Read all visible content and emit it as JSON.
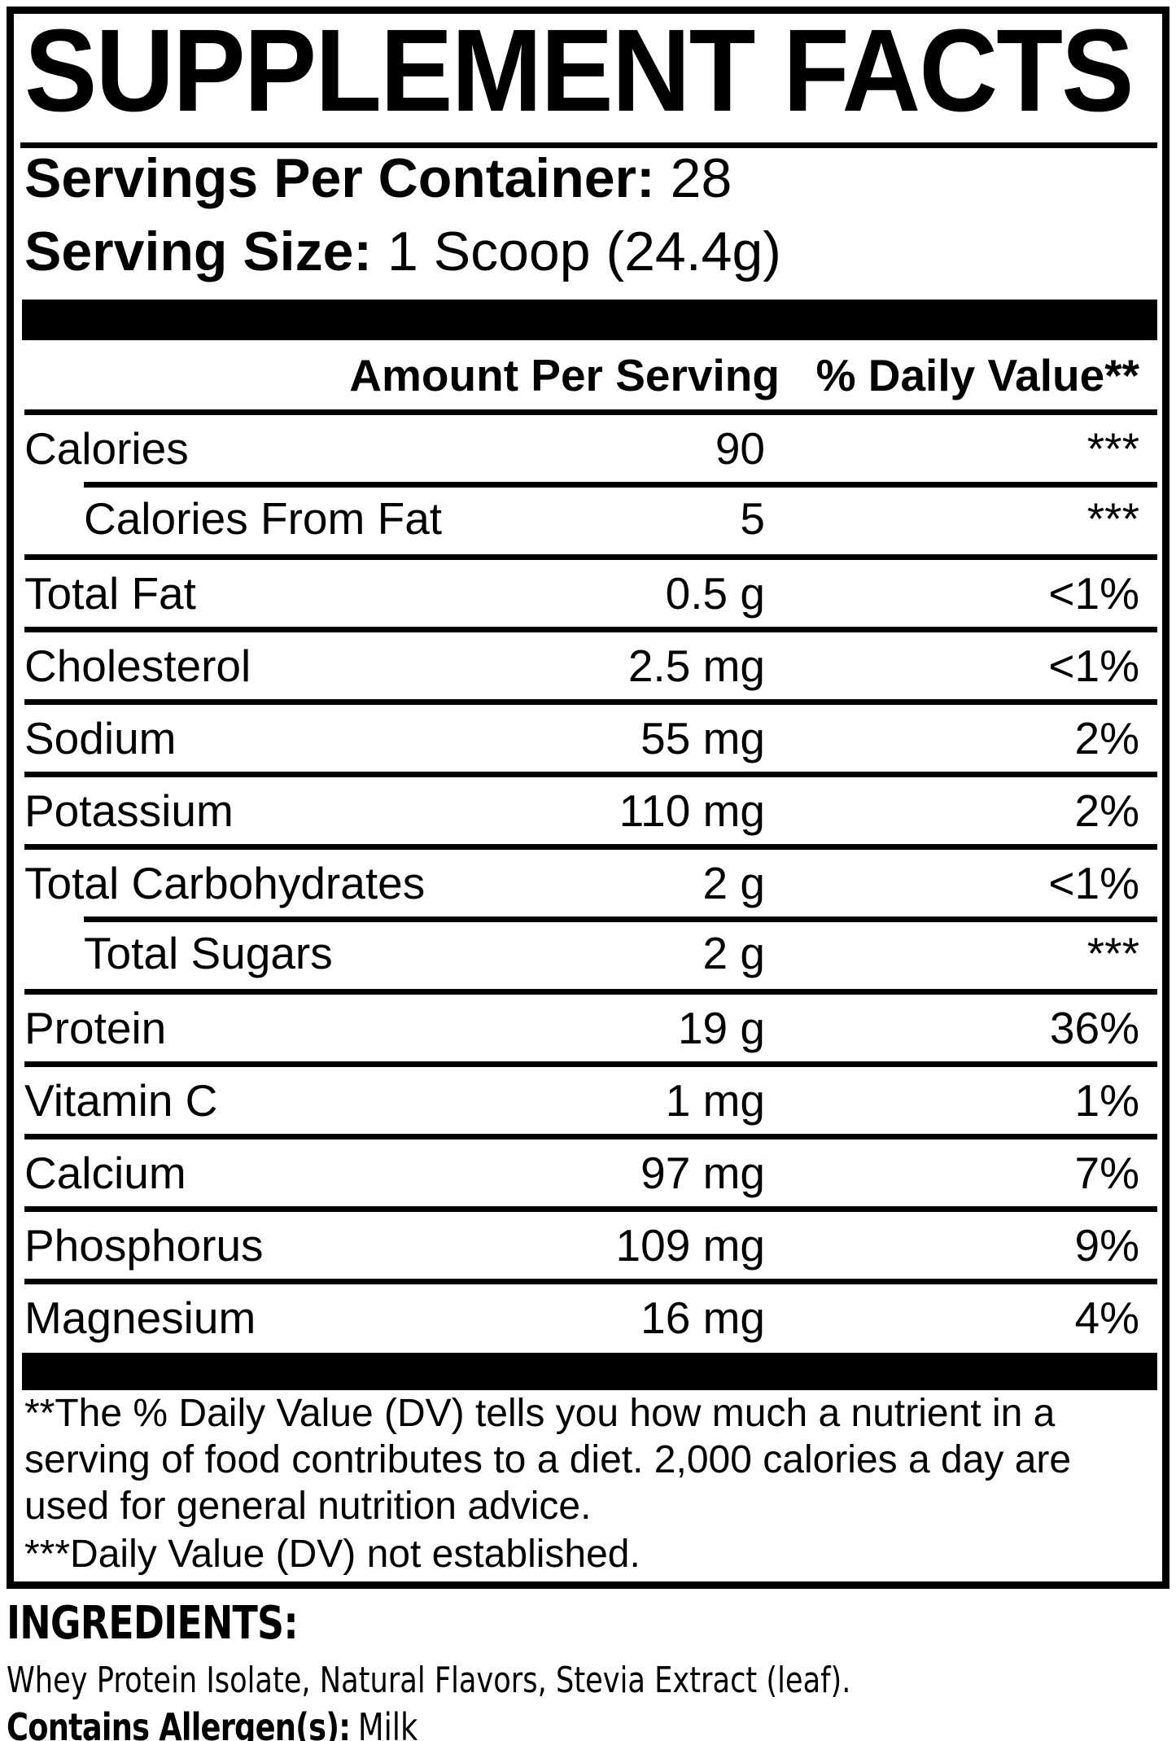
{
  "title": "SUPPLEMENT FACTS",
  "serving_info": {
    "servings_per_container_label": "Servings Per Container:",
    "servings_per_container_value": "28",
    "serving_size_label": "Serving Size:",
    "serving_size_value": "1 Scoop (24.4g)"
  },
  "table": {
    "amount_header": "Amount Per Serving",
    "dv_header": "% Daily Value**",
    "rows": [
      {
        "name": "Calories",
        "amount": "90",
        "daily_value": "***",
        "indent": false
      },
      {
        "name": "Calories From Fat",
        "amount": "5",
        "daily_value": "***",
        "indent": true
      },
      {
        "name": "Total Fat",
        "amount": "0.5 g",
        "daily_value": "<1%",
        "indent": false
      },
      {
        "name": "Cholesterol",
        "amount": "2.5 mg",
        "daily_value": "<1%",
        "indent": false
      },
      {
        "name": "Sodium",
        "amount": "55 mg",
        "daily_value": "2%",
        "indent": false
      },
      {
        "name": "Potassium",
        "amount": "110 mg",
        "daily_value": "2%",
        "indent": false
      },
      {
        "name": "Total Carbohydrates",
        "amount": "2 g",
        "daily_value": "<1%",
        "indent": false
      },
      {
        "name": "Total Sugars",
        "amount": "2 g",
        "daily_value": "***",
        "indent": true
      },
      {
        "name": "Protein",
        "amount": "19 g",
        "daily_value": "36%",
        "indent": false
      },
      {
        "name": "Vitamin C",
        "amount": "1 mg",
        "daily_value": "1%",
        "indent": false
      },
      {
        "name": "Calcium",
        "amount": "97 mg",
        "daily_value": "7%",
        "indent": false
      },
      {
        "name": "Phosphorus",
        "amount": "109 mg",
        "daily_value": "9%",
        "indent": false
      },
      {
        "name": "Magnesium",
        "amount": "16 mg",
        "daily_value": "4%",
        "indent": false
      }
    ]
  },
  "footnotes": {
    "daily_value_note": "**The % Daily Value (DV) tells you how much a nutrient in a serving of food contributes to a diet. 2,000 calories a day are used for general nutrition advice.",
    "not_established_note": "***Daily Value (DV) not established."
  },
  "ingredients": {
    "heading": "INGREDIENTS:",
    "list": "Whey Protein Isolate, Natural Flavors, Stevia Extract (leaf).",
    "allergen_label": "Contains Allergen(s):",
    "allergen_value": "Milk"
  },
  "colors": {
    "text": "#000000",
    "background": "#ffffff",
    "panel_border": "#000000",
    "separator_bar": "#000000"
  }
}
